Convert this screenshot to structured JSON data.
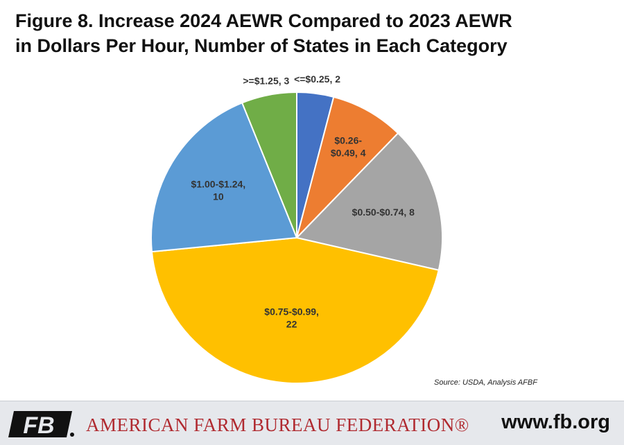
{
  "header": {
    "title_line1": "Figure 8. Increase 2024 AEWR Compared to 2023 AEWR",
    "title_line2": "in Dollars Per Hour, Number of States in Each Category"
  },
  "chart_data": {
    "type": "pie",
    "title": "Figure 8. Increase 2024 AEWR Compared to 2023 AEWR in Dollars Per Hour, Number of States in Each Category",
    "categories": [
      "<=$0.25",
      "$0.26-$0.49",
      "$0.50-$0.74",
      "$0.75-$0.99",
      "$1.00-$1.24",
      ">=$1.25"
    ],
    "values": [
      2,
      4,
      8,
      22,
      10,
      3
    ],
    "colors": [
      "#4472c4",
      "#ed7d31",
      "#a5a5a5",
      "#ffc000",
      "#5b9bd5",
      "#70ad47"
    ],
    "data_labels": [
      [
        "<=$0.25, 2"
      ],
      [
        "$0.26-",
        "$0.49, 4"
      ],
      [
        "$0.50-$0.74, 8"
      ],
      [
        "$0.75-$0.99,",
        "22"
      ],
      [
        "$1.00-$1.24,",
        "10"
      ],
      [
        ">=$1.25, 3"
      ]
    ],
    "legend": "none"
  },
  "source": "Source: USDA, Analysis AFBF",
  "footer": {
    "logo_text": "FB",
    "org_name": "AMERICAN FARM BUREAU FEDERATION®",
    "url": "www.fb.org"
  }
}
